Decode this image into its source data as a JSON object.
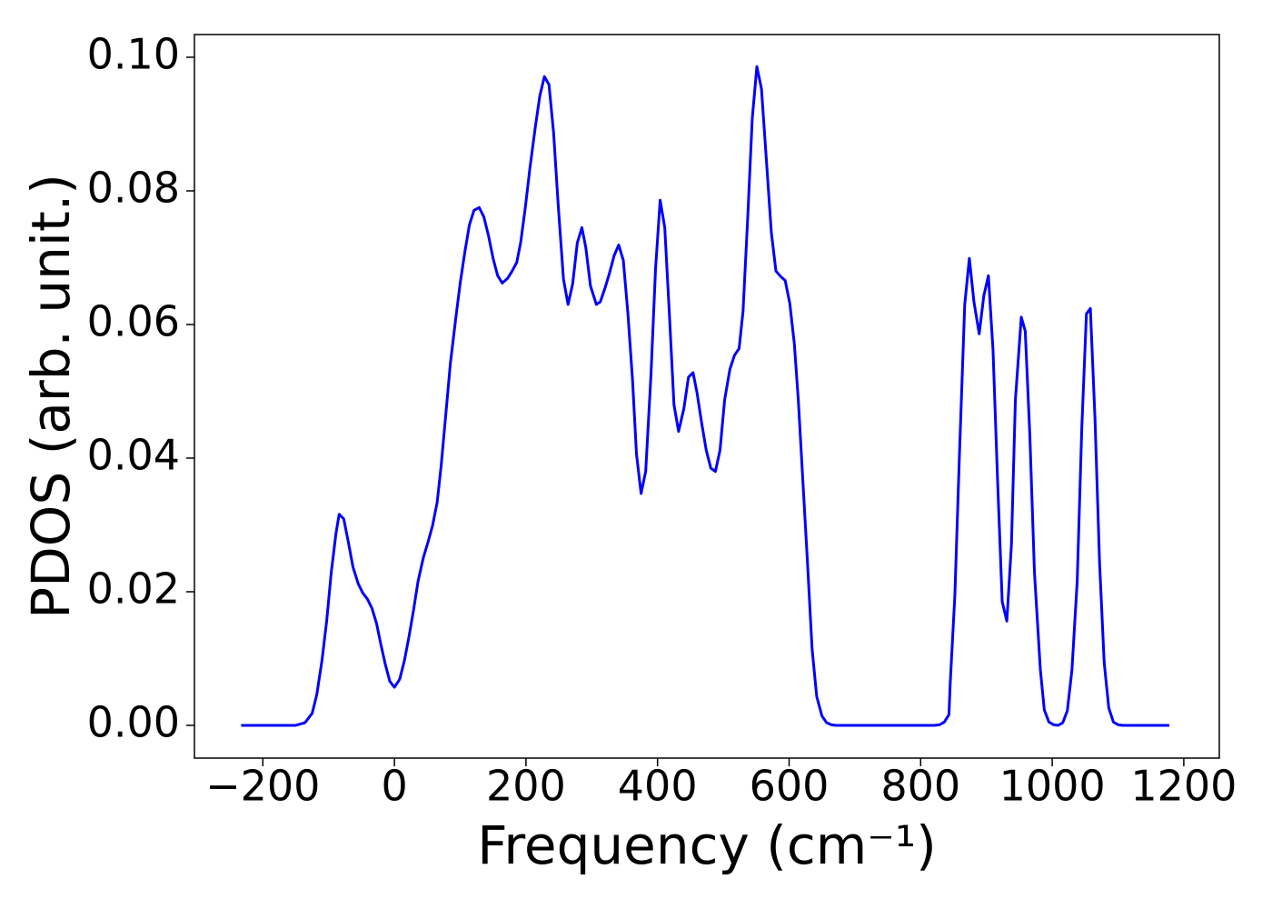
{
  "chart_data": {
    "type": "line",
    "color": "#0000ff",
    "xlabel": "Frequency (cm⁻¹)",
    "ylabel": "PDOS (arb. unit.)",
    "xlim": [
      -304,
      1254
    ],
    "ylim": [
      -0.0049,
      0.1034
    ],
    "xticks": [
      {
        "value": -200,
        "label": "−200"
      },
      0,
      200,
      400,
      600,
      800,
      1000,
      1200
    ],
    "yticks": [
      {
        "value": 0,
        "label": "0.00"
      },
      0.02,
      0.04,
      0.06,
      0.08,
      {
        "value": 0.1,
        "label": "0.10"
      }
    ],
    "x": [
      -233,
      -200,
      -150,
      -136,
      -125,
      -118,
      -110,
      -103,
      -96,
      -89,
      -84,
      -77,
      -70,
      -63,
      -55,
      -48,
      -41,
      -34,
      -27,
      -21,
      -14,
      -7,
      0,
      8,
      15,
      22,
      29,
      36,
      44,
      51,
      58,
      65,
      71,
      78,
      85,
      93,
      100,
      107,
      114,
      121,
      129,
      136,
      143,
      150,
      157,
      164,
      172,
      179,
      186,
      192,
      199,
      206,
      214,
      221,
      228,
      235,
      242,
      249,
      257,
      264,
      271,
      278,
      285,
      291,
      298,
      307,
      313,
      320,
      327,
      334,
      341,
      348,
      355,
      362,
      368,
      375,
      382,
      390,
      397,
      404,
      411,
      418,
      425,
      432,
      440,
      447,
      454,
      460,
      467,
      474,
      481,
      488,
      495,
      502,
      510,
      517,
      524,
      530,
      537,
      544,
      551,
      558,
      565,
      573,
      580,
      587,
      594,
      601,
      608,
      614,
      621,
      628,
      635,
      642,
      650,
      657,
      664,
      671,
      821,
      829,
      836,
      843,
      845,
      852,
      859,
      867,
      874,
      881,
      889,
      896,
      903,
      910,
      917,
      924,
      931,
      938,
      944,
      953,
      959,
      966,
      973,
      982,
      988,
      995,
      1002,
      1009,
      1016,
      1023,
      1030,
      1038,
      1045,
      1052,
      1058,
      1065,
      1072,
      1079,
      1086,
      1093,
      1100,
      1107,
      1178
    ],
    "values": [
      0,
      0,
      0,
      0.0004,
      0.0018,
      0.0046,
      0.0098,
      0.0156,
      0.0229,
      0.0286,
      0.0316,
      0.0309,
      0.0274,
      0.0237,
      0.0212,
      0.0198,
      0.0189,
      0.0175,
      0.0152,
      0.0123,
      0.0092,
      0.0066,
      0.0057,
      0.0069,
      0.0096,
      0.0132,
      0.0172,
      0.0216,
      0.0251,
      0.0274,
      0.0299,
      0.0334,
      0.0388,
      0.0464,
      0.0541,
      0.0607,
      0.0662,
      0.0708,
      0.0749,
      0.0771,
      0.0775,
      0.0761,
      0.0733,
      0.0699,
      0.0673,
      0.0662,
      0.0669,
      0.068,
      0.0693,
      0.0723,
      0.0775,
      0.0834,
      0.0894,
      0.0942,
      0.0971,
      0.0959,
      0.0887,
      0.0779,
      0.0668,
      0.063,
      0.0661,
      0.0722,
      0.0745,
      0.0715,
      0.0658,
      0.063,
      0.0634,
      0.0654,
      0.0677,
      0.0703,
      0.0719,
      0.0696,
      0.0616,
      0.0517,
      0.0406,
      0.0347,
      0.038,
      0.0524,
      0.0684,
      0.0786,
      0.0745,
      0.0616,
      0.048,
      0.044,
      0.0474,
      0.0521,
      0.0528,
      0.0498,
      0.0453,
      0.0412,
      0.0385,
      0.038,
      0.0412,
      0.0487,
      0.0533,
      0.0554,
      0.0564,
      0.062,
      0.0758,
      0.0908,
      0.0986,
      0.0953,
      0.0853,
      0.0738,
      0.068,
      0.0672,
      0.0666,
      0.0632,
      0.0571,
      0.0487,
      0.0365,
      0.0243,
      0.0114,
      0.0043,
      0.0014,
      0.0004,
      0.0001,
      0,
      0,
      0.0001,
      0.0005,
      0.0016,
      0.0064,
      0.0195,
      0.0406,
      0.063,
      0.0699,
      0.0634,
      0.0586,
      0.0643,
      0.0673,
      0.0562,
      0.0365,
      0.0185,
      0.0156,
      0.027,
      0.0487,
      0.0611,
      0.059,
      0.0434,
      0.0229,
      0.0083,
      0.0023,
      0.0005,
      0.0001,
      0,
      0.0004,
      0.0022,
      0.0083,
      0.0216,
      0.0446,
      0.0616,
      0.0624,
      0.046,
      0.0243,
      0.0094,
      0.0026,
      0.0005,
      0.0001,
      0,
      0
    ]
  }
}
